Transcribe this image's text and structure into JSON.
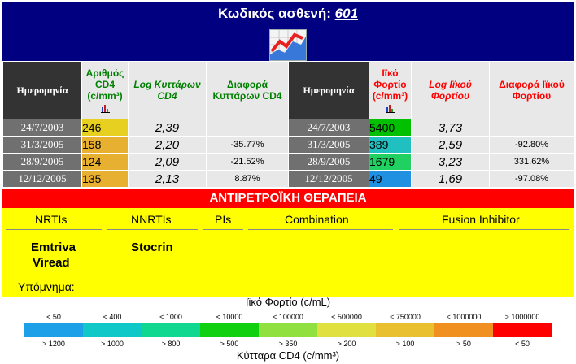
{
  "header": {
    "title_prefix": "Κωδικός ασθενή:",
    "patient_code": "601"
  },
  "cd4_headers": {
    "date": "Ημερομηνία",
    "count": "Αριθμός CD4 (c/mm³)",
    "log": "Log Κυττάρων CD4",
    "diff": "Διαφορά Κυττάρων CD4"
  },
  "vl_headers": {
    "date": "Ημερομηνία",
    "load": "Ιϊκό Φορτίο (c/mm³)",
    "log": "Log Ιϊκού Φορτίου",
    "diff": "Διαφορά Ιϊκού Φορτίου"
  },
  "rows": [
    {
      "date": "24/7/2003",
      "cd4": "246",
      "cd4_color": "#e8d020",
      "log": "2,39",
      "diff": "",
      "vdate": "24/7/2003",
      "vl": "5400",
      "vl_color": "#00c000",
      "vlog": "3,73",
      "vdiff": ""
    },
    {
      "date": "31/3/2005",
      "cd4": "158",
      "cd4_color": "#e8b030",
      "log": "2,20",
      "diff": "-35.77%",
      "vdate": "31/3/2005",
      "vl": "389",
      "vl_color": "#20c0c0",
      "vlog": "2,59",
      "vdiff": "-92.80%"
    },
    {
      "date": "28/9/2005",
      "cd4": "124",
      "cd4_color": "#e8b030",
      "log": "2,09",
      "diff": "-21.52%",
      "vdate": "28/9/2005",
      "vl": "1679",
      "vl_color": "#20d060",
      "vlog": "3,23",
      "vdiff": "331.62%"
    },
    {
      "date": "12/12/2005",
      "cd4": "135",
      "cd4_color": "#e8b030",
      "log": "2,13",
      "diff": "8.87%",
      "vdate": "12/12/2005",
      "vl": "49",
      "vl_color": "#2090e0",
      "vlog": "1,69",
      "vdiff": "-97.08%"
    }
  ],
  "therapy": {
    "title": "ΑΝΤΙΡΕΤΡΟΪΚΗ ΘΕΡΑΠΕΙΑ",
    "columns": [
      "NRTIs",
      "NNRTIs",
      "PIs",
      "Combination",
      "Fusion Inhibitor"
    ],
    "nrtis": [
      "Emtriva",
      "Viread"
    ],
    "nnrtis": [
      "Stocrin"
    ]
  },
  "legend": {
    "title": "Υπόμνημα:",
    "vl_title": "Ιϊκό Φορτίο (c/mL)",
    "cd4_title": "Κύτταρα CD4 (c/mm³)",
    "vl_labels": [
      "< 50",
      "< 400",
      "< 1000",
      "< 10000",
      "< 100000",
      "< 500000",
      "< 750000",
      "< 1000000",
      "> 1000000"
    ],
    "cd4_labels": [
      "> 1200",
      "> 1000",
      "> 800",
      "> 500",
      "> 350",
      "> 200",
      "> 100",
      "> 50",
      "< 50"
    ],
    "colors": [
      "#1ea0e8",
      "#10c8c8",
      "#10d890",
      "#10d010",
      "#90e040",
      "#e0e040",
      "#e8c030",
      "#f09020",
      "#ff0000"
    ]
  }
}
